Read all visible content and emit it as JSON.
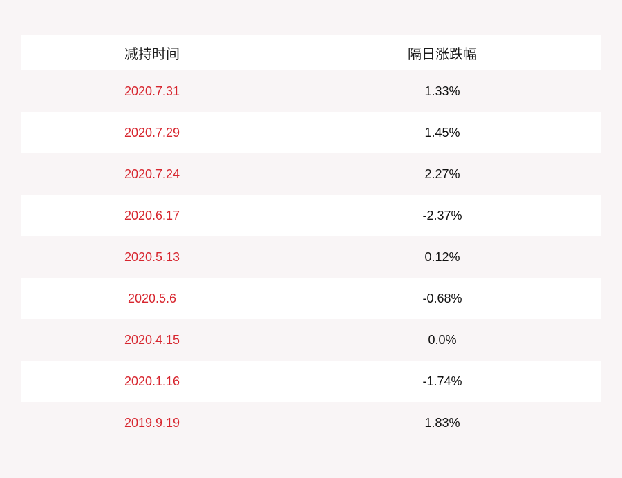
{
  "table": {
    "headers": [
      "减持时间",
      "隔日涨跌幅"
    ],
    "rows": [
      {
        "date": "2020.7.31",
        "change": "1.33%"
      },
      {
        "date": "2020.7.29",
        "change": "1.45%"
      },
      {
        "date": "2020.7.24",
        "change": "2.27%"
      },
      {
        "date": "2020.6.17",
        "change": "-2.37%"
      },
      {
        "date": "2020.5.13",
        "change": "0.12%"
      },
      {
        "date": "2020.5.6",
        "change": "-0.68%"
      },
      {
        "date": "2020.4.15",
        "change": "0.0%"
      },
      {
        "date": "2020.1.16",
        "change": "-1.74%"
      },
      {
        "date": "2019.9.19",
        "change": "1.83%"
      }
    ]
  },
  "colors": {
    "background": "#f9f5f6",
    "row_white": "#ffffff",
    "date_text": "#d7262f",
    "value_text": "#111111"
  },
  "chart_data": {
    "type": "table",
    "title": "",
    "columns": [
      "减持时间",
      "隔日涨跌幅"
    ],
    "rows": [
      [
        "2020.7.31",
        "1.33%"
      ],
      [
        "2020.7.29",
        "1.45%"
      ],
      [
        "2020.7.24",
        "2.27%"
      ],
      [
        "2020.6.17",
        "-2.37%"
      ],
      [
        "2020.5.13",
        "0.12%"
      ],
      [
        "2020.5.6",
        "-0.68%"
      ],
      [
        "2020.4.15",
        "0.0%"
      ],
      [
        "2020.1.16",
        "-1.74%"
      ],
      [
        "2019.9.19",
        "1.83%"
      ]
    ],
    "categories": [
      "2020.7.31",
      "2020.7.29",
      "2020.7.24",
      "2020.6.17",
      "2020.5.13",
      "2020.5.6",
      "2020.4.15",
      "2020.1.16",
      "2019.9.19"
    ],
    "values": [
      1.33,
      1.45,
      2.27,
      -2.37,
      0.12,
      -0.68,
      0.0,
      -1.74,
      1.83
    ]
  }
}
